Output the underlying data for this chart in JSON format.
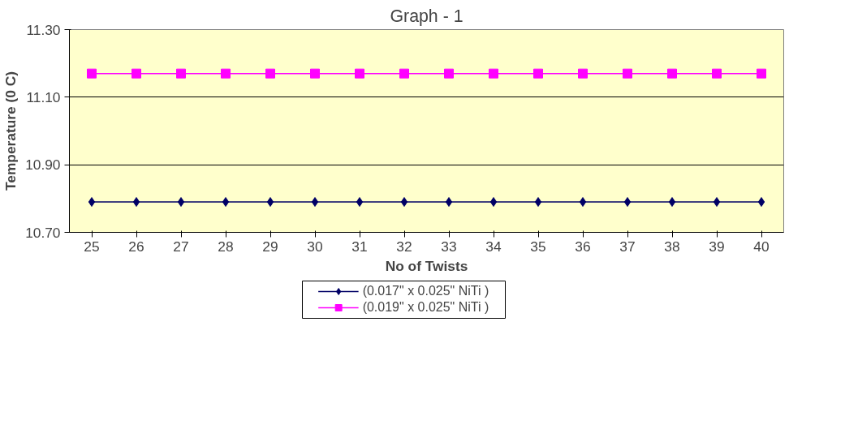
{
  "chart_data": {
    "type": "line",
    "title": "Graph - 1",
    "xlabel": "No of Twists",
    "ylabel": "Temperature (0 C)",
    "categories": [
      "25",
      "26",
      "27",
      "28",
      "29",
      "30",
      "31",
      "32",
      "33",
      "34",
      "35",
      "36",
      "37",
      "38",
      "39",
      "40"
    ],
    "series": [
      {
        "name": "(0.017\" x 0.025\" NiTi )",
        "color": "#000066",
        "marker": "diamond",
        "values": [
          10.79,
          10.79,
          10.79,
          10.79,
          10.79,
          10.79,
          10.79,
          10.79,
          10.79,
          10.79,
          10.79,
          10.79,
          10.79,
          10.79,
          10.79,
          10.79
        ]
      },
      {
        "name": "(0.019\" x 0.025\" NiTi )",
        "color": "#ff00ff",
        "marker": "square",
        "values": [
          11.17,
          11.17,
          11.17,
          11.17,
          11.17,
          11.17,
          11.17,
          11.17,
          11.17,
          11.17,
          11.17,
          11.17,
          11.17,
          11.17,
          11.17,
          11.17
        ]
      }
    ],
    "ylim": [
      10.7,
      11.3
    ],
    "yticks": [
      {
        "value": 10.7,
        "label": "10.70"
      },
      {
        "value": 10.9,
        "label": "10.90"
      },
      {
        "value": 11.1,
        "label": "11.10"
      },
      {
        "value": 11.3,
        "label": "11.30"
      }
    ],
    "grid": "y",
    "legend": "bottom",
    "line_style": "solid"
  }
}
